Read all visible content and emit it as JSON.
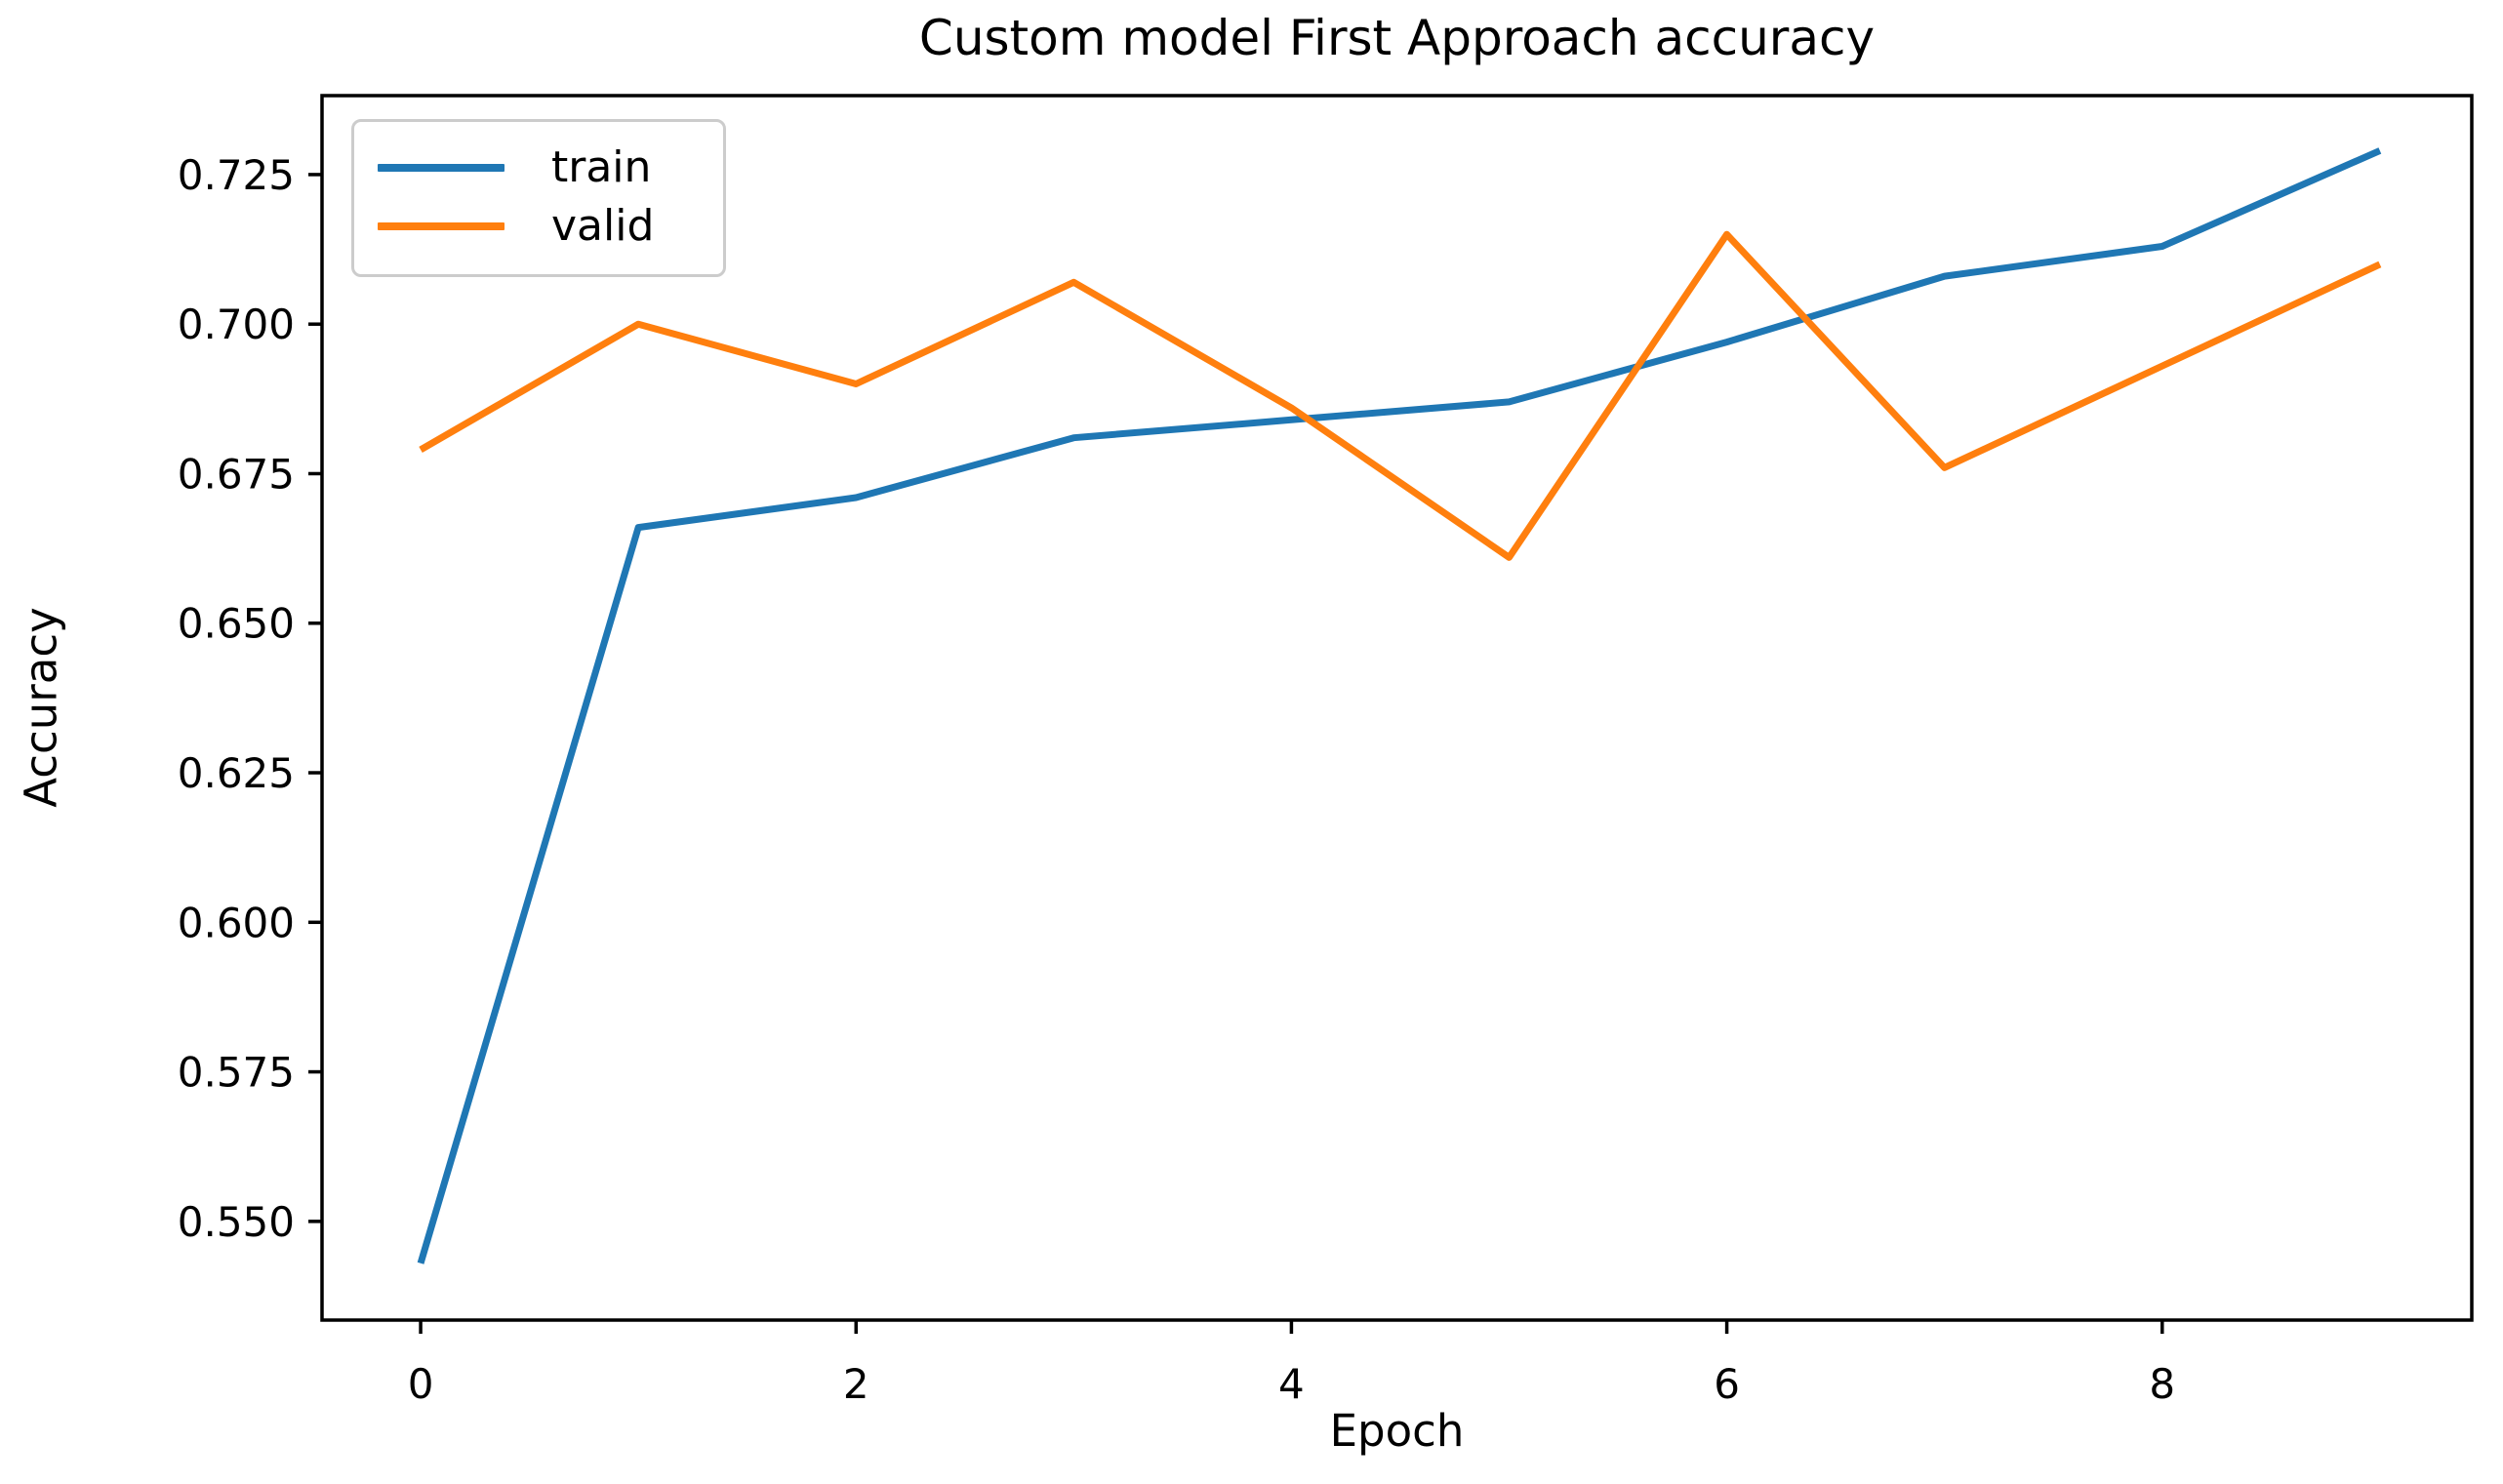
{
  "chart_data": {
    "type": "line",
    "title": "Custom model First Approach accuracy",
    "xlabel": "Epoch",
    "ylabel": "Accuracy",
    "x": [
      0,
      1,
      2,
      3,
      4,
      5,
      6,
      7,
      8,
      9
    ],
    "series": [
      {
        "name": "train",
        "color": "#1f77b4",
        "values": [
          0.543,
          0.666,
          0.671,
          0.681,
          0.684,
          0.687,
          0.697,
          0.708,
          0.713,
          0.729
        ]
      },
      {
        "name": "valid",
        "color": "#ff7f0e",
        "values": [
          0.679,
          0.7,
          0.69,
          0.707,
          0.686,
          0.661,
          0.715,
          0.676,
          0.693,
          0.71
        ]
      }
    ],
    "xlim": [
      -0.453,
      9.422
    ],
    "ylim": [
      0.5335,
      0.7382
    ],
    "xticks": [
      0,
      2,
      4,
      6,
      8
    ],
    "xtick_labels": [
      "0",
      "2",
      "4",
      "6",
      "8"
    ],
    "yticks": [
      0.55,
      0.575,
      0.6,
      0.625,
      0.65,
      0.675,
      0.7,
      0.725
    ],
    "ytick_labels": [
      "0.550",
      "0.575",
      "0.600",
      "0.625",
      "0.650",
      "0.675",
      "0.700",
      "0.725"
    ],
    "grid": false,
    "legend_position": "upper left",
    "axis_color": "#000000",
    "background_color": "#ffffff"
  }
}
